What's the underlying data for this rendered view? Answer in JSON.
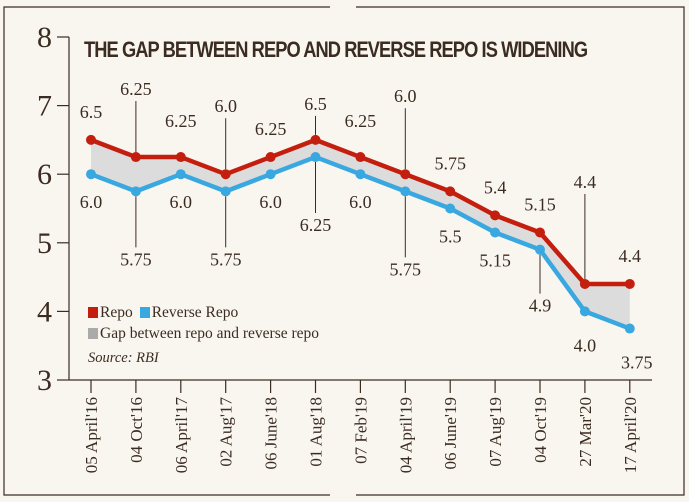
{
  "chart_data": {
    "type": "line",
    "title": "THE GAP BETWEEN REPO AND REVERSE REPO IS WIDENING",
    "xlabel": "",
    "ylabel": "",
    "ylim": [
      3,
      8
    ],
    "yticks": [
      3,
      4,
      5,
      6,
      7,
      8
    ],
    "categories": [
      "05 April'16",
      "04 Oct'16",
      "06 April'17",
      "02 Aug'17",
      "06 June'18",
      "01 Aug'18",
      "07 Feb'19",
      "04 April'19",
      "06 June'19",
      "07 Aug'19",
      "04 Oct'19",
      "27 Mar'20",
      "17 April'20"
    ],
    "series": [
      {
        "name": "Repo",
        "color": "#c41e0e",
        "values": [
          6.5,
          6.25,
          6.25,
          6.0,
          6.25,
          6.5,
          6.25,
          6.0,
          5.75,
          5.4,
          5.15,
          4.4,
          4.4
        ],
        "labels": [
          "6.5",
          "6.25",
          "6.25",
          "6.0",
          "6.25",
          "6.5",
          "6.25",
          "6.0",
          "5.75",
          "5.4",
          "5.15",
          "4.4",
          "4.4"
        ]
      },
      {
        "name": "Reverse Repo",
        "color": "#3aa8e0",
        "values": [
          6.0,
          5.75,
          6.0,
          5.75,
          6.0,
          6.25,
          6.0,
          5.75,
          5.5,
          5.15,
          4.9,
          4.0,
          3.75
        ],
        "labels": [
          "6.0",
          "5.75",
          "6.0",
          "5.75",
          "6.0",
          "6.25",
          "6.0",
          "5.75",
          "5.5",
          "5.15",
          "4.9",
          "4.0",
          "3.75"
        ]
      }
    ],
    "gap_fill": {
      "name": "Gap between repo and reverse repo",
      "color": "#dddcdc",
      "legend_color": "#aaaaaa"
    },
    "legend_position": "bottom-left",
    "grid": false,
    "source": "Source: RBI"
  }
}
